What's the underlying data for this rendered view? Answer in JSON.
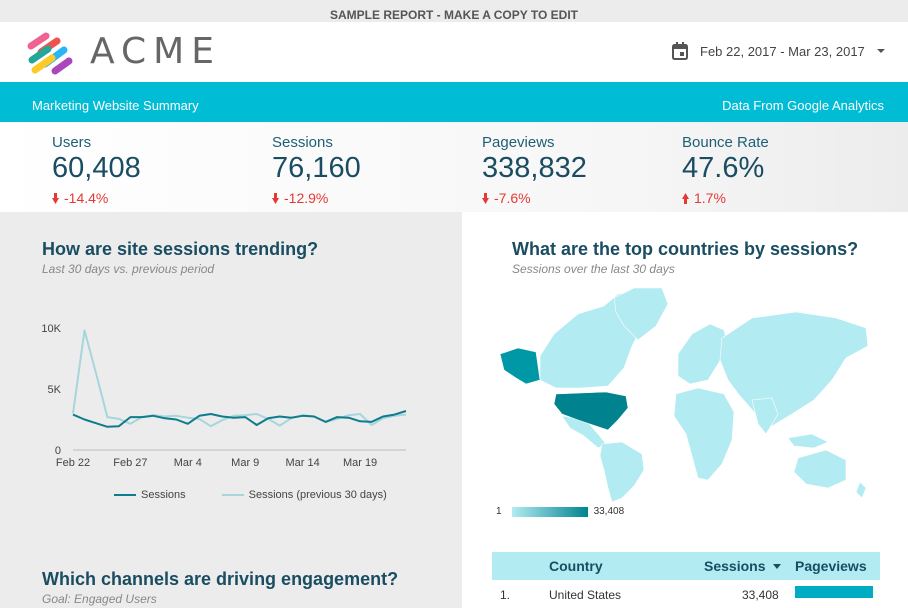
{
  "banner": "SAMPLE REPORT - MAKE A COPY TO EDIT",
  "brand": {
    "name": "ACME"
  },
  "date_range": {
    "text": "Feb 22, 2017 - Mar 23, 2017"
  },
  "subbar": {
    "left": "Marketing Website Summary",
    "right": "Data From Google Analytics"
  },
  "kpis": [
    {
      "label": "Users",
      "value": "60,408",
      "change": "-14.4%",
      "direction": "down"
    },
    {
      "label": "Sessions",
      "value": "76,160",
      "change": "-12.9%",
      "direction": "down"
    },
    {
      "label": "Pageviews",
      "value": "338,832",
      "change": "-7.6%",
      "direction": "down"
    },
    {
      "label": "Bounce Rate",
      "value": "47.6%",
      "change": "1.7%",
      "direction": "up"
    }
  ],
  "trend": {
    "title": "How are site sessions trending?",
    "subtitle": "Last 30 days vs. previous period"
  },
  "chart_data": {
    "type": "line",
    "x": [
      "Feb 22",
      "Feb 23",
      "Feb 24",
      "Feb 25",
      "Feb 26",
      "Feb 27",
      "Feb 28",
      "Mar 1",
      "Mar 2",
      "Mar 3",
      "Mar 4",
      "Mar 5",
      "Mar 6",
      "Mar 7",
      "Mar 8",
      "Mar 9",
      "Mar 10",
      "Mar 11",
      "Mar 12",
      "Mar 13",
      "Mar 14",
      "Mar 15",
      "Mar 16",
      "Mar 17",
      "Mar 18",
      "Mar 19",
      "Mar 20",
      "Mar 21",
      "Mar 22",
      "Mar 23"
    ],
    "x_tick_labels": [
      "Feb 22",
      "Feb 27",
      "Mar 4",
      "Mar 9",
      "Mar 14",
      "Mar 19"
    ],
    "y_ticks": [
      "0",
      "5K",
      "10K"
    ],
    "ylim": [
      0,
      10000
    ],
    "series": [
      {
        "name": "Sessions",
        "color": "#0e7c8c",
        "values": [
          2900,
          2500,
          2200,
          1900,
          1950,
          2700,
          2700,
          2800,
          2600,
          2500,
          2150,
          2800,
          2950,
          2750,
          2650,
          2700,
          2050,
          2600,
          2750,
          2650,
          2800,
          2750,
          2300,
          2700,
          2650,
          2350,
          2300,
          2750,
          2900,
          3200
        ]
      },
      {
        "name": "Sessions (previous 30 days)",
        "color": "#a6d5dc",
        "values": [
          3000,
          9800,
          6300,
          2700,
          2550,
          2150,
          2700,
          2850,
          2750,
          2800,
          2650,
          2550,
          1950,
          2450,
          2800,
          2850,
          2950,
          2550,
          2000,
          2600,
          2850,
          2750,
          2300,
          2550,
          2850,
          2950,
          2050,
          2600,
          2800,
          2900
        ]
      }
    ]
  },
  "countries": {
    "title": "What are the top countries by sessions?",
    "subtitle": "Sessions over the last 30 days",
    "scale_min": "1",
    "scale_max": "33,408"
  },
  "table": {
    "headers": {
      "country": "Country",
      "sessions": "Sessions",
      "pageviews": "Pageviews"
    },
    "rows": [
      {
        "rank": "1.",
        "country": "United States",
        "sessions": "33,408",
        "pageviews_fraction": 1.0
      }
    ]
  },
  "engagement": {
    "title": "Which channels are driving engagement?",
    "subtitle": "Goal: Engaged Users"
  }
}
